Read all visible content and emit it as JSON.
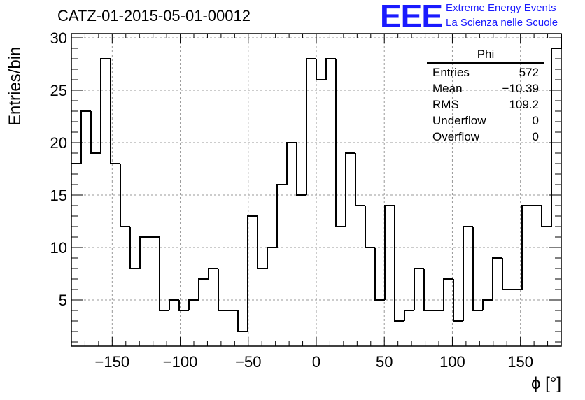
{
  "title": "CATZ-01-2015-05-01-00012",
  "logo": {
    "mark": "EEE",
    "line1": "Extreme Energy Events",
    "line2": "La Scienza nelle Scuole",
    "color": "#1a1aff"
  },
  "stats_box": {
    "title": "Phi",
    "rows": [
      {
        "label": "Entries",
        "value": "572"
      },
      {
        "label": "Mean",
        "value": "−10.39"
      },
      {
        "label": "RMS",
        "value": "109.2"
      },
      {
        "label": "Underflow",
        "value": "0"
      },
      {
        "label": "Overflow",
        "value": "0"
      }
    ]
  },
  "chart_data": {
    "type": "bar",
    "style": "step-histogram",
    "xlabel": "ϕ [°]",
    "ylabel": "Entries/bin",
    "xlim": [
      -180,
      180
    ],
    "ylim": [
      0.6,
      30.4
    ],
    "bin_width": 7.2,
    "xticks": [
      -150,
      -100,
      -50,
      0,
      50,
      100,
      150
    ],
    "xtick_labels": [
      "−150",
      "−100",
      "−50",
      "0",
      "50",
      "100",
      "150"
    ],
    "yticks": [
      5,
      10,
      15,
      20,
      25,
      30
    ],
    "ytick_labels": [
      "5",
      "10",
      "15",
      "20",
      "25",
      "30"
    ],
    "grid": true,
    "values": [
      18,
      23,
      19,
      28,
      18,
      12,
      8,
      11,
      11,
      4,
      5,
      4,
      5,
      7,
      8,
      4,
      4,
      2,
      13,
      8,
      10,
      16,
      20,
      15,
      28,
      26,
      28,
      12,
      19,
      14,
      10,
      5,
      14,
      3,
      4,
      8,
      4,
      4,
      7,
      3,
      12,
      4,
      5,
      9,
      6,
      6,
      14,
      14,
      12,
      29
    ]
  }
}
